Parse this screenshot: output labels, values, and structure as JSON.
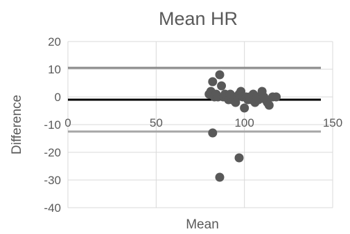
{
  "chart_data": {
    "type": "scatter",
    "title": "Mean HR",
    "xlabel": "Mean",
    "ylabel": "Difference",
    "xlim": [
      0,
      150
    ],
    "ylim": [
      -40,
      20
    ],
    "xticks": [
      0,
      50,
      100,
      150
    ],
    "yticks": [
      20,
      10,
      0,
      -10,
      -20,
      -30,
      -40
    ],
    "grid": true,
    "legend": "none",
    "points": [
      {
        "x": 80,
        "y": 1
      },
      {
        "x": 81,
        "y": 2
      },
      {
        "x": 82,
        "y": 5.5
      },
      {
        "x": 83,
        "y": 0
      },
      {
        "x": 84,
        "y": 1
      },
      {
        "x": 85,
        "y": 0
      },
      {
        "x": 86,
        "y": 8
      },
      {
        "x": 87,
        "y": 4
      },
      {
        "x": 88,
        "y": 0
      },
      {
        "x": 89,
        "y": 1
      },
      {
        "x": 90,
        "y": 0
      },
      {
        "x": 91,
        "y": -1
      },
      {
        "x": 92,
        "y": 1
      },
      {
        "x": 93,
        "y": -1
      },
      {
        "x": 94,
        "y": 0
      },
      {
        "x": 95,
        "y": -2
      },
      {
        "x": 96,
        "y": 0
      },
      {
        "x": 97,
        "y": 1
      },
      {
        "x": 98,
        "y": 2
      },
      {
        "x": 99,
        "y": 0
      },
      {
        "x": 100,
        "y": -4
      },
      {
        "x": 101,
        "y": 0
      },
      {
        "x": 102,
        "y": -1
      },
      {
        "x": 103,
        "y": 0
      },
      {
        "x": 104,
        "y": -1
      },
      {
        "x": 105,
        "y": 1
      },
      {
        "x": 106,
        "y": -2
      },
      {
        "x": 107,
        "y": 0
      },
      {
        "x": 108,
        "y": -1
      },
      {
        "x": 110,
        "y": 2
      },
      {
        "x": 111,
        "y": 0
      },
      {
        "x": 112,
        "y": -1
      },
      {
        "x": 113,
        "y": -2
      },
      {
        "x": 114,
        "y": -3
      },
      {
        "x": 116,
        "y": 0
      },
      {
        "x": 118,
        "y": 0
      },
      {
        "x": 82,
        "y": -13
      },
      {
        "x": 97,
        "y": -22
      },
      {
        "x": 86,
        "y": -29
      }
    ],
    "reference_lines": [
      {
        "y": 10.5,
        "color": "#8c8c8c"
      },
      {
        "y": -1,
        "color": "#000000"
      },
      {
        "y": -12.5,
        "color": "#a6a6a6"
      }
    ],
    "colors": {
      "points": "#595959",
      "grid": "#d9d9d9",
      "text": "#595959"
    }
  }
}
